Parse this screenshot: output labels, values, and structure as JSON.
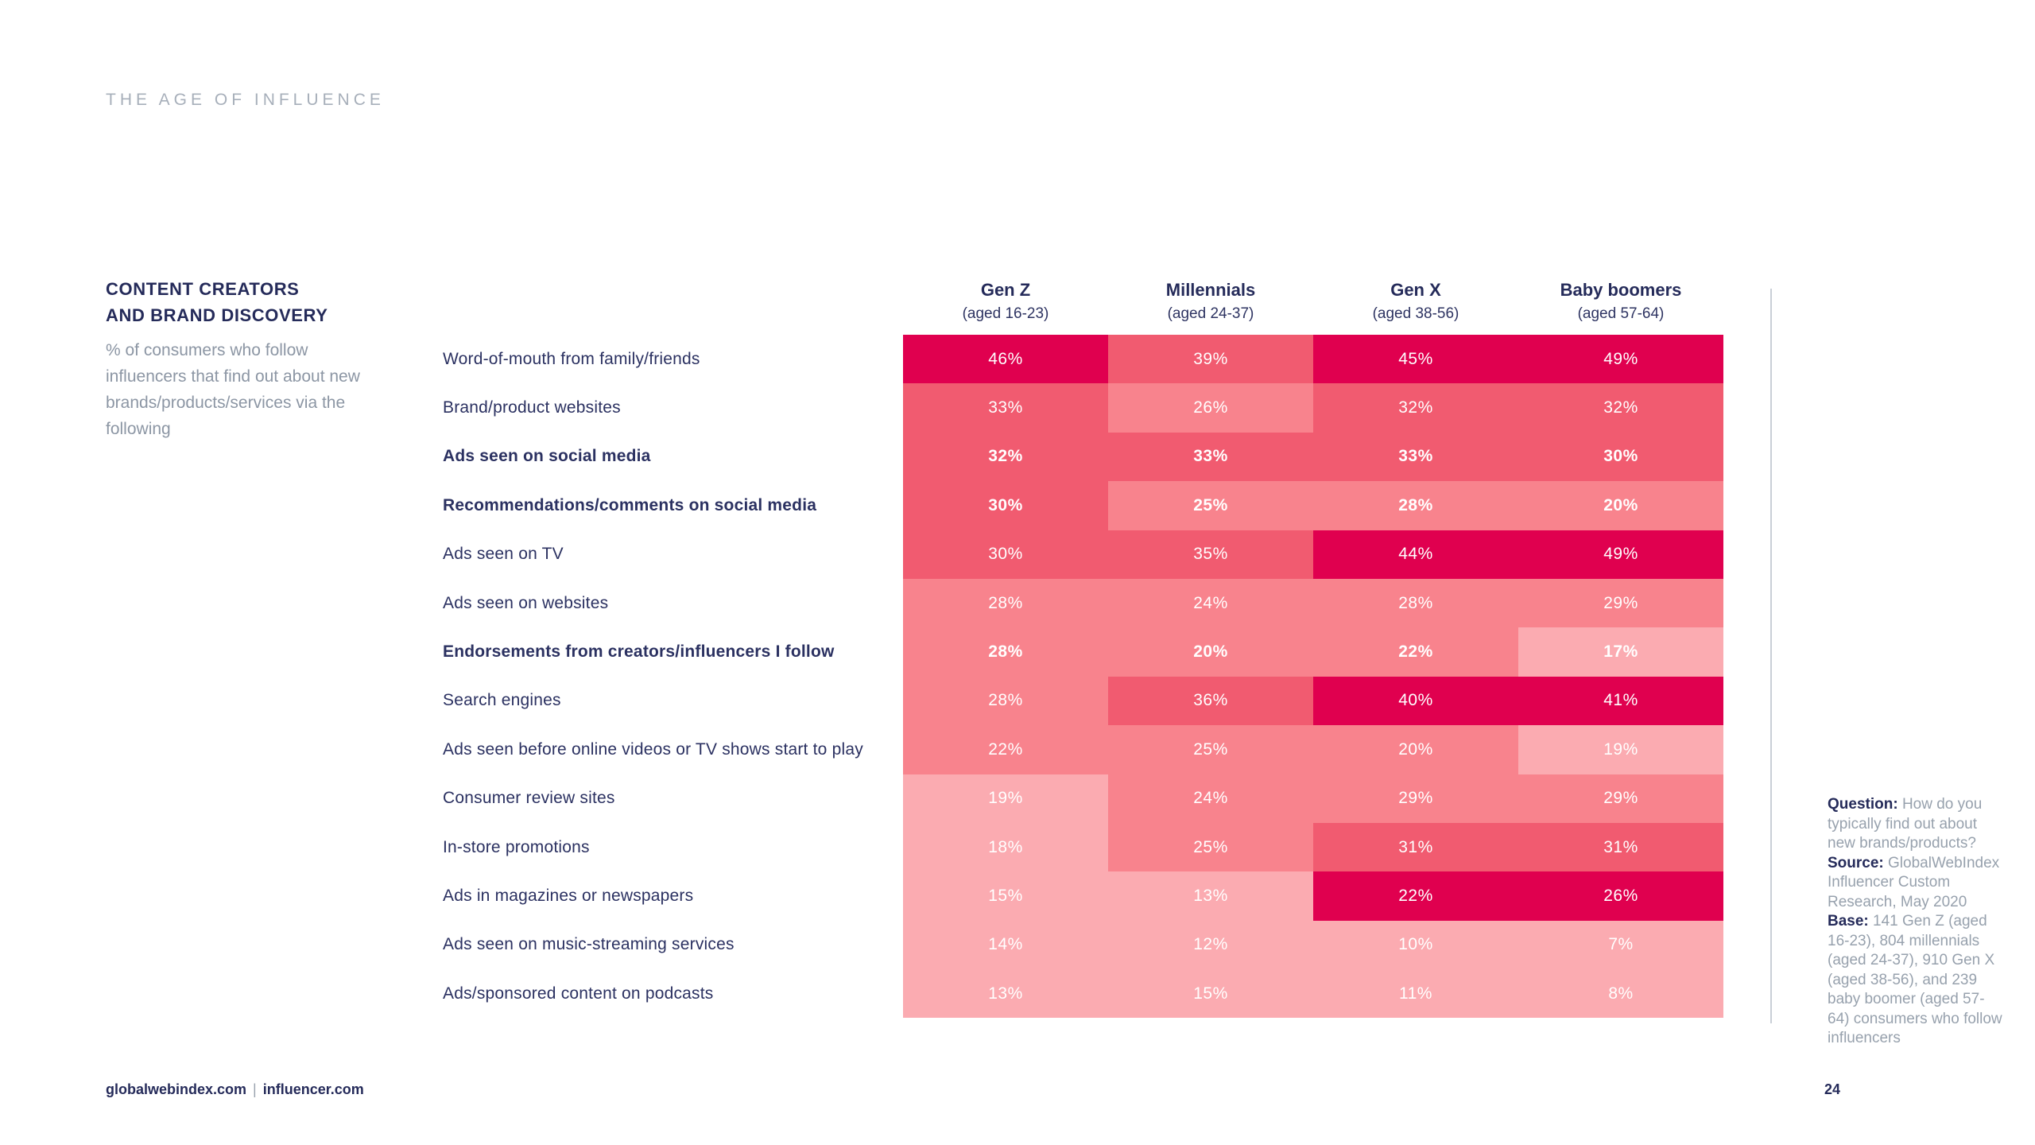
{
  "slide": {
    "eyebrow": "THE AGE OF INFLUENCE",
    "page_number": "24",
    "footer": {
      "left_site": "globalwebindex.com",
      "separator": "|",
      "right_site": "influencer.com"
    }
  },
  "note": {
    "question_label": "Question:",
    "question_text": " How do you typically find out about new brands/products? ",
    "source_label": "Source:",
    "source_text": " GlobalWebIndex Influencer Custom Research, May 2020 ",
    "base_label": "Base:",
    "base_text": " 141 Gen Z (aged 16-23), 804 millennials (aged 24-37), 910 Gen X (aged 38-56), and 239 baby boomer (aged 57-64) consumers who follow influencers"
  },
  "chart_data": {
    "type": "heatmap",
    "title": "CONTENT CREATORS AND BRAND DISCOVERY",
    "title_line1": "CONTENT CREATORS",
    "title_line2": "AND BRAND DISCOVERY",
    "subtitle": "% of consumers who follow influencers that find out about new brands/products/services via the following",
    "value_suffix": "%",
    "legend_position": "none",
    "grid": false,
    "palette": {
      "dark": "#E0004F",
      "medium": "#F15B70",
      "light": "#F8838D",
      "lightest": "#FBABB1"
    },
    "columns": [
      {
        "name": "Gen Z",
        "age": "(aged 16-23)"
      },
      {
        "name": "Millennials",
        "age": "(aged 24-37)"
      },
      {
        "name": "Gen X",
        "age": "(aged 38-56)"
      },
      {
        "name": "Baby boomers",
        "age": "(aged 57-64)"
      }
    ],
    "rows": [
      {
        "label": "Word-of-mouth from family/friends",
        "emphasis": false,
        "values": [
          46,
          39,
          45,
          49
        ],
        "levels": [
          "dark",
          "medium",
          "dark",
          "dark"
        ]
      },
      {
        "label": "Brand/product websites",
        "emphasis": false,
        "values": [
          33,
          26,
          32,
          32
        ],
        "levels": [
          "medium",
          "light",
          "medium",
          "medium"
        ]
      },
      {
        "label": "Ads seen on social media",
        "emphasis": true,
        "values": [
          32,
          33,
          33,
          30
        ],
        "levels": [
          "medium",
          "medium",
          "medium",
          "medium"
        ]
      },
      {
        "label": "Recommendations/comments on social media",
        "emphasis": true,
        "values": [
          30,
          25,
          28,
          20
        ],
        "levels": [
          "medium",
          "light",
          "light",
          "light"
        ]
      },
      {
        "label": "Ads seen on TV",
        "emphasis": false,
        "values": [
          30,
          35,
          44,
          49
        ],
        "levels": [
          "medium",
          "medium",
          "dark",
          "dark"
        ]
      },
      {
        "label": "Ads seen on websites",
        "emphasis": false,
        "values": [
          28,
          24,
          28,
          29
        ],
        "levels": [
          "light",
          "light",
          "light",
          "light"
        ]
      },
      {
        "label": "Endorsements from creators/influencers I follow",
        "emphasis": true,
        "values": [
          28,
          20,
          22,
          17
        ],
        "levels": [
          "light",
          "light",
          "light",
          "lightest"
        ]
      },
      {
        "label": "Search engines",
        "emphasis": false,
        "values": [
          28,
          36,
          40,
          41
        ],
        "levels": [
          "light",
          "medium",
          "dark",
          "dark"
        ]
      },
      {
        "label": "Ads seen before online videos or TV shows start to play",
        "emphasis": false,
        "values": [
          22,
          25,
          20,
          19
        ],
        "levels": [
          "light",
          "light",
          "light",
          "lightest"
        ]
      },
      {
        "label": "Consumer review sites",
        "emphasis": false,
        "values": [
          19,
          24,
          29,
          29
        ],
        "levels": [
          "lightest",
          "light",
          "light",
          "light"
        ]
      },
      {
        "label": "In-store promotions",
        "emphasis": false,
        "values": [
          18,
          25,
          31,
          31
        ],
        "levels": [
          "lightest",
          "light",
          "medium",
          "medium"
        ]
      },
      {
        "label": "Ads in magazines or newspapers",
        "emphasis": false,
        "values": [
          15,
          13,
          22,
          26
        ],
        "levels": [
          "lightest",
          "lightest",
          "dark",
          "dark"
        ]
      },
      {
        "label": "Ads seen on music-streaming services",
        "emphasis": false,
        "values": [
          14,
          12,
          10,
          7
        ],
        "levels": [
          "lightest",
          "lightest",
          "lightest",
          "lightest"
        ]
      },
      {
        "label": "Ads/sponsored content on podcasts",
        "emphasis": false,
        "values": [
          13,
          15,
          11,
          8
        ],
        "levels": [
          "lightest",
          "lightest",
          "lightest",
          "lightest"
        ]
      }
    ]
  }
}
